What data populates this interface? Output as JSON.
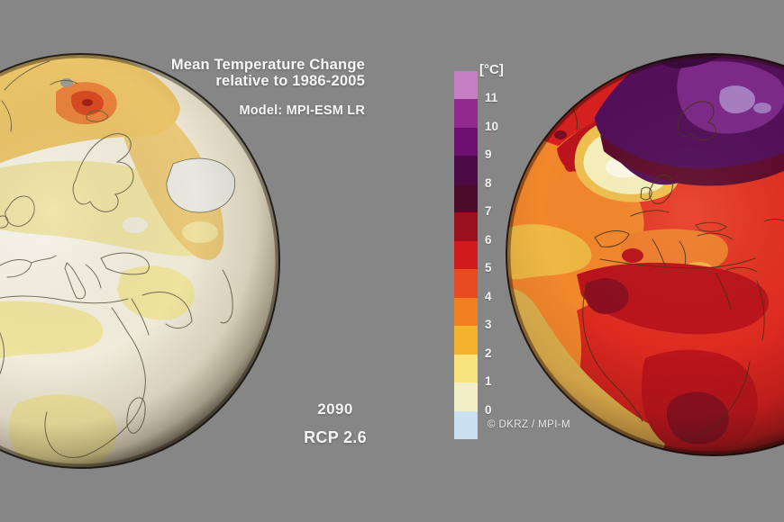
{
  "background_color": "#868686",
  "header": {
    "title_line1": "Mean Temperature Change",
    "title_line2": "relative to 1986-2005",
    "model_label": "Model: MPI-ESM LR"
  },
  "annotations": {
    "year": "2090",
    "scenario": "RCP 2.6",
    "credit": "© DKRZ / MPI-M"
  },
  "legend": {
    "unit_label": "[°C]",
    "tick_labels": [
      "11",
      "10",
      "9",
      "8",
      "7",
      "6",
      "5",
      "4",
      "3",
      "2",
      "1",
      "0"
    ],
    "segment_colors_top_to_bottom": [
      "#c77fc4",
      "#8e2b8c",
      "#6d1070",
      "#4c0b46",
      "#4a0b2a",
      "#9a101f",
      "#d01a1d",
      "#e84a20",
      "#f0801f",
      "#f2b32e",
      "#f8e47e",
      "#f5efc8",
      "#cadff0"
    ]
  }
}
